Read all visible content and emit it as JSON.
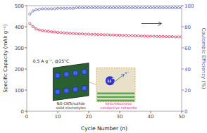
{
  "chart_data": {
    "type": "line",
    "x": [
      1,
      2,
      3,
      4,
      5,
      6,
      7,
      8,
      9,
      10,
      11,
      12,
      13,
      14,
      15,
      16,
      17,
      18,
      19,
      20,
      21,
      22,
      23,
      24,
      25,
      26,
      27,
      28,
      29,
      30,
      31,
      32,
      33,
      34,
      35,
      36,
      37,
      38,
      39,
      40,
      41,
      42,
      43,
      44,
      45,
      46,
      47,
      48,
      49,
      50
    ],
    "series": [
      {
        "color": "#dd1144",
        "marker": "circle",
        "line_style": "solid",
        "values": [
          415,
          400,
          390,
          385,
          382,
          380,
          378,
          376,
          375,
          373,
          372,
          371,
          370,
          369,
          368,
          367,
          366,
          366,
          365,
          365,
          364,
          364,
          363,
          363,
          362,
          362,
          361,
          361,
          360,
          360,
          359,
          359,
          358,
          358,
          357,
          357,
          356,
          356,
          355,
          355,
          355,
          354,
          354,
          354,
          353,
          353,
          353,
          352,
          352,
          352
        ]
      },
      {
        "color": "#5555bb",
        "marker": "circle",
        "line_style": "solid",
        "axis": "y2",
        "values": [
          92,
          95,
          96,
          96.5,
          97,
          97,
          97,
          97,
          97,
          97.5,
          97.5,
          97.5,
          97.5,
          97.5,
          97.5,
          98,
          98,
          98,
          98,
          98,
          98,
          98,
          98,
          98,
          98,
          98,
          98,
          98,
          98,
          98,
          98,
          98,
          98,
          98,
          98,
          98,
          98,
          98,
          98,
          98,
          98,
          98,
          98,
          98,
          98,
          98,
          98,
          98,
          98,
          98
        ]
      }
    ],
    "xlabel": "Cycle Number (n)",
    "ylabel": "Specific Capacity (mAh g⁻¹)",
    "y2label": "Coulombic Efficiency (%)",
    "xlim": [
      0,
      50
    ],
    "xticks": [
      0,
      10,
      20,
      30,
      40,
      50
    ],
    "ylim": [
      0,
      500
    ],
    "yticks": [
      0,
      100,
      200,
      300,
      400,
      500
    ],
    "y2lim": [
      0,
      100
    ],
    "y2ticks": [
      0,
      20,
      40,
      60,
      80,
      100
    ],
    "grid": false,
    "annotations": [
      "0.5 A g⁻¹,  @25°C",
      "NiS-CNTs/sulfide\nsolid electrolytes",
      "Ionic/electronic\nconductive networks",
      "Li",
      "+",
      "e⁻"
    ]
  }
}
